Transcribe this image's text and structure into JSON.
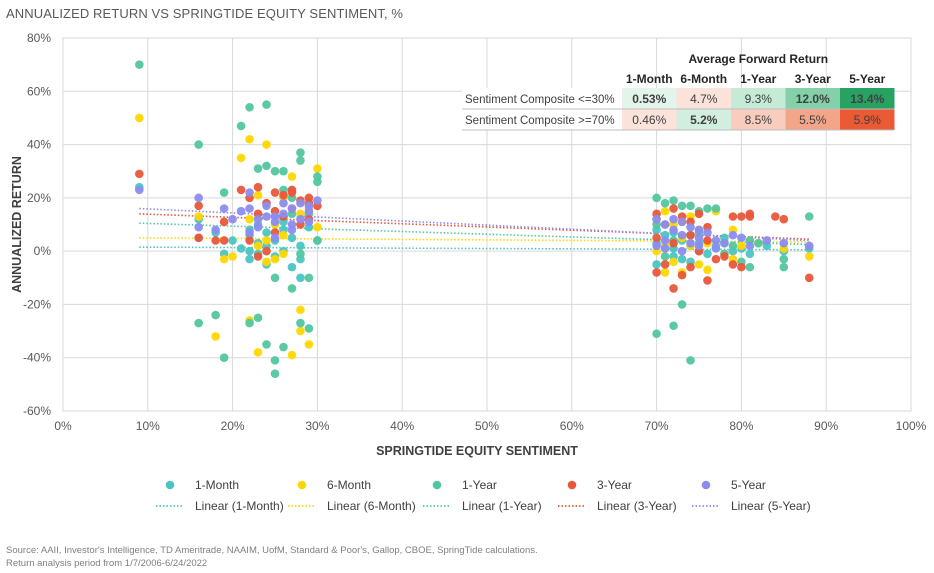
{
  "title": "ANNUALIZED RETURN VS SPRINGTIDE EQUITY SENTIMENT, %",
  "source_line1": "Source: AAII, Investor's Intelligence, TD Ameritrade, NAAIM, UofM, Standard & Poor's, Gallop, CBOE, SpringTide calculations.",
  "source_line2": "Return analysis period from 1/7/2006-6/24/2022",
  "chart_data": {
    "type": "scatter",
    "xlabel": "SPRINGTIDE EQUITY SENTIMENT",
    "ylabel": "ANNUALIZED RETURN",
    "xlim": [
      0,
      100
    ],
    "ylim": [
      -60,
      80
    ],
    "x_ticks": [
      0,
      10,
      20,
      30,
      40,
      50,
      60,
      70,
      80,
      90,
      100
    ],
    "y_ticks": [
      -60,
      -40,
      -20,
      0,
      20,
      40,
      60,
      80
    ],
    "x_tick_labels": [
      "0%",
      "10%",
      "20%",
      "30%",
      "40%",
      "50%",
      "60%",
      "70%",
      "80%",
      "90%",
      "100%"
    ],
    "y_tick_labels": [
      "-60%",
      "-40%",
      "-20%",
      "0%",
      "20%",
      "40%",
      "60%",
      "80%"
    ],
    "grid": true,
    "legend_position": "bottom",
    "series": [
      {
        "name": "1-Month",
        "color": "#4BC4C4",
        "points": [
          [
            9,
            24
          ],
          [
            16,
            12
          ],
          [
            16,
            5
          ],
          [
            18,
            7
          ],
          [
            19,
            -1
          ],
          [
            20,
            4
          ],
          [
            21,
            1
          ],
          [
            22,
            6
          ],
          [
            22,
            -3
          ],
          [
            23,
            10
          ],
          [
            23,
            3
          ],
          [
            24,
            -5
          ],
          [
            24,
            7
          ],
          [
            25,
            -2
          ],
          [
            25,
            4
          ],
          [
            26,
            0
          ],
          [
            26,
            11
          ],
          [
            27,
            -6
          ],
          [
            27,
            5
          ],
          [
            28,
            2
          ],
          [
            28,
            -3
          ],
          [
            29,
            9
          ],
          [
            29,
            14
          ],
          [
            30,
            4
          ],
          [
            22,
            0
          ],
          [
            24,
            2
          ],
          [
            26,
            8
          ],
          [
            28,
            -10
          ],
          [
            23,
            -1
          ],
          [
            25,
            13
          ],
          [
            70,
            3
          ],
          [
            70,
            -5
          ],
          [
            71,
            2
          ],
          [
            71,
            6
          ],
          [
            72,
            -2
          ],
          [
            72,
            1
          ],
          [
            73,
            4
          ],
          [
            73,
            -3
          ],
          [
            74,
            2
          ],
          [
            74,
            6
          ],
          [
            75,
            0
          ],
          [
            75,
            3
          ],
          [
            76,
            -1
          ],
          [
            77,
            2
          ],
          [
            78,
            5
          ],
          [
            79,
            0
          ],
          [
            80,
            1
          ],
          [
            81,
            -1
          ],
          [
            83,
            2
          ],
          [
            85,
            0
          ],
          [
            88,
            1
          ],
          [
            70,
            8
          ],
          [
            72,
            7
          ],
          [
            74,
            -4
          ]
        ]
      },
      {
        "name": "6-Month",
        "color": "#FFD700",
        "points": [
          [
            9,
            50
          ],
          [
            16,
            13
          ],
          [
            18,
            -32
          ],
          [
            19,
            -3
          ],
          [
            20,
            -2
          ],
          [
            21,
            35
          ],
          [
            22,
            42
          ],
          [
            22,
            -26
          ],
          [
            23,
            -38
          ],
          [
            23,
            21
          ],
          [
            24,
            40
          ],
          [
            24,
            -4
          ],
          [
            25,
            -3
          ],
          [
            25,
            10
          ],
          [
            26,
            -1
          ],
          [
            26,
            20
          ],
          [
            27,
            28
          ],
          [
            27,
            -39
          ],
          [
            28,
            -22
          ],
          [
            28,
            -30
          ],
          [
            29,
            -35
          ],
          [
            29,
            16
          ],
          [
            30,
            31
          ],
          [
            22,
            12
          ],
          [
            24,
            4
          ],
          [
            26,
            6
          ],
          [
            28,
            14
          ],
          [
            23,
            2
          ],
          [
            30,
            9
          ],
          [
            70,
            12
          ],
          [
            70,
            0
          ],
          [
            71,
            15
          ],
          [
            71,
            2
          ],
          [
            72,
            -4
          ],
          [
            72,
            10
          ],
          [
            73,
            5
          ],
          [
            73,
            -8
          ],
          [
            74,
            13
          ],
          [
            74,
            2
          ],
          [
            75,
            -5
          ],
          [
            75,
            8
          ],
          [
            76,
            3
          ],
          [
            77,
            15
          ],
          [
            78,
            -1
          ],
          [
            79,
            8
          ],
          [
            80,
            2
          ],
          [
            81,
            4
          ],
          [
            82,
            3
          ],
          [
            85,
            1
          ],
          [
            88,
            -2
          ],
          [
            71,
            -8
          ],
          [
            73,
            11
          ],
          [
            76,
            -7
          ],
          [
            79,
            -3
          ]
        ]
      },
      {
        "name": "1-Year",
        "color": "#52C79F",
        "points": [
          [
            9,
            70
          ],
          [
            16,
            40
          ],
          [
            16,
            -27
          ],
          [
            18,
            -24
          ],
          [
            19,
            22
          ],
          [
            19,
            -40
          ],
          [
            21,
            47
          ],
          [
            22,
            54
          ],
          [
            22,
            -27
          ],
          [
            23,
            -25
          ],
          [
            23,
            31
          ],
          [
            24,
            55
          ],
          [
            24,
            -35
          ],
          [
            25,
            30
          ],
          [
            25,
            -46
          ],
          [
            25,
            -41
          ],
          [
            26,
            -36
          ],
          [
            26,
            23
          ],
          [
            27,
            20
          ],
          [
            27,
            -14
          ],
          [
            28,
            37
          ],
          [
            28,
            -27
          ],
          [
            28,
            -1
          ],
          [
            29,
            -29
          ],
          [
            29,
            -10
          ],
          [
            30,
            28
          ],
          [
            30,
            26
          ],
          [
            24,
            32
          ],
          [
            26,
            30
          ],
          [
            28,
            34
          ],
          [
            30,
            4
          ],
          [
            22,
            8
          ],
          [
            25,
            -10
          ],
          [
            27,
            14
          ],
          [
            70,
            -31
          ],
          [
            70,
            20
          ],
          [
            71,
            18
          ],
          [
            71,
            -2
          ],
          [
            72,
            -28
          ],
          [
            72,
            19
          ],
          [
            73,
            17
          ],
          [
            73,
            -20
          ],
          [
            74,
            -41
          ],
          [
            74,
            17
          ],
          [
            75,
            15
          ],
          [
            76,
            16
          ],
          [
            77,
            16
          ],
          [
            78,
            3
          ],
          [
            79,
            2
          ],
          [
            80,
            -4
          ],
          [
            81,
            -6
          ],
          [
            82,
            3
          ],
          [
            85,
            -6
          ],
          [
            85,
            -3
          ],
          [
            88,
            13
          ],
          [
            70,
            10
          ],
          [
            72,
            4
          ],
          [
            75,
            7
          ],
          [
            78,
            -1
          ],
          [
            81,
            4
          ]
        ]
      },
      {
        "name": "3-Year",
        "color": "#E8573A",
        "points": [
          [
            9,
            29
          ],
          [
            16,
            17
          ],
          [
            16,
            5
          ],
          [
            18,
            4
          ],
          [
            19,
            11
          ],
          [
            19,
            4
          ],
          [
            21,
            23
          ],
          [
            22,
            20
          ],
          [
            22,
            4
          ],
          [
            23,
            24
          ],
          [
            23,
            14
          ],
          [
            24,
            0
          ],
          [
            24,
            18
          ],
          [
            25,
            7
          ],
          [
            25,
            22
          ],
          [
            26,
            21
          ],
          [
            26,
            13
          ],
          [
            27,
            16
          ],
          [
            27,
            23
          ],
          [
            28,
            19
          ],
          [
            28,
            10
          ],
          [
            29,
            18
          ],
          [
            29,
            12
          ],
          [
            30,
            17
          ],
          [
            23,
            -2
          ],
          [
            25,
            15
          ],
          [
            27,
            22
          ],
          [
            29,
            20
          ],
          [
            70,
            14
          ],
          [
            70,
            -8
          ],
          [
            71,
            10
          ],
          [
            71,
            -5
          ],
          [
            72,
            16
          ],
          [
            72,
            -14
          ],
          [
            73,
            13
          ],
          [
            73,
            -9
          ],
          [
            74,
            11
          ],
          [
            74,
            -6
          ],
          [
            75,
            14
          ],
          [
            75,
            0
          ],
          [
            76,
            -11
          ],
          [
            76,
            9
          ],
          [
            77,
            -3
          ],
          [
            79,
            13
          ],
          [
            79,
            -5
          ],
          [
            80,
            13
          ],
          [
            80,
            -6
          ],
          [
            81,
            13
          ],
          [
            81,
            14
          ],
          [
            84,
            13
          ],
          [
            85,
            12
          ],
          [
            88,
            -10
          ],
          [
            70,
            5
          ],
          [
            72,
            3
          ],
          [
            74,
            6
          ],
          [
            76,
            4
          ],
          [
            78,
            -2
          ]
        ]
      },
      {
        "name": "5-Year",
        "color": "#8C8CF0",
        "points": [
          [
            9,
            23
          ],
          [
            16,
            20
          ],
          [
            16,
            9
          ],
          [
            18,
            8
          ],
          [
            19,
            16
          ],
          [
            20,
            12
          ],
          [
            21,
            15
          ],
          [
            22,
            16
          ],
          [
            22,
            22
          ],
          [
            23,
            12
          ],
          [
            23,
            9
          ],
          [
            24,
            13
          ],
          [
            24,
            17
          ],
          [
            25,
            13
          ],
          [
            25,
            11
          ],
          [
            26,
            18
          ],
          [
            26,
            14
          ],
          [
            27,
            16
          ],
          [
            27,
            10
          ],
          [
            28,
            18
          ],
          [
            28,
            12
          ],
          [
            29,
            17
          ],
          [
            29,
            15
          ],
          [
            30,
            19
          ],
          [
            22,
            7
          ],
          [
            25,
            5
          ],
          [
            27,
            8
          ],
          [
            29,
            11
          ],
          [
            70,
            2
          ],
          [
            70,
            12
          ],
          [
            71,
            10
          ],
          [
            71,
            4
          ],
          [
            72,
            8
          ],
          [
            72,
            12
          ],
          [
            73,
            11
          ],
          [
            73,
            6
          ],
          [
            74,
            9
          ],
          [
            74,
            3
          ],
          [
            75,
            5
          ],
          [
            75,
            8
          ],
          [
            76,
            7
          ],
          [
            77,
            4
          ],
          [
            78,
            3
          ],
          [
            79,
            6
          ],
          [
            80,
            5
          ],
          [
            81,
            2
          ],
          [
            83,
            4
          ],
          [
            85,
            3
          ],
          [
            88,
            2
          ],
          [
            71,
            1
          ],
          [
            73,
            0
          ],
          [
            75,
            2
          ],
          [
            77,
            1
          ]
        ]
      }
    ],
    "trendlines": [
      {
        "name": "Linear (1-Month)",
        "color": "#4BC4C4",
        "x": [
          9,
          88
        ],
        "y": [
          1.5,
          0.5
        ]
      },
      {
        "name": "Linear (6-Month)",
        "color": "#FFD700",
        "x": [
          9,
          88
        ],
        "y": [
          5,
          3.5
        ]
      },
      {
        "name": "Linear (1-Year)",
        "color": "#52C79F",
        "x": [
          9,
          88
        ],
        "y": [
          10.5,
          2.5
        ]
      },
      {
        "name": "Linear (3-Year)",
        "color": "#E8573A",
        "x": [
          9,
          88
        ],
        "y": [
          14,
          4.5
        ]
      },
      {
        "name": "Linear (5-Year)",
        "color": "#8C8CF0",
        "x": [
          9,
          88
        ],
        "y": [
          16,
          4
        ]
      }
    ]
  },
  "table": {
    "title": "Average Forward Return",
    "headers": [
      "1-Month",
      "6-Month",
      "1-Year",
      "3-Year",
      "5-Year"
    ],
    "rows": [
      {
        "label": "Sentiment Composite  <=30%",
        "values": [
          "0.53%",
          "4.7%",
          "9.3%",
          "12.0%",
          "13.4%"
        ],
        "colors": [
          "#E3F4EB",
          "#FBE2DA",
          "#C5EAD6",
          "#83D0A9",
          "#27A263"
        ],
        "bold": [
          true,
          false,
          false,
          true,
          true
        ]
      },
      {
        "label": "Sentiment Composite  >=70%",
        "values": [
          "0.46%",
          "5.2%",
          "8.5%",
          "5.5%",
          "5.9%"
        ],
        "colors": [
          "#FBE2DA",
          "#D2EEDF",
          "#F8CDBE",
          "#F3A589",
          "#EA5A35"
        ],
        "bold": [
          false,
          true,
          false,
          false,
          false
        ]
      }
    ]
  }
}
